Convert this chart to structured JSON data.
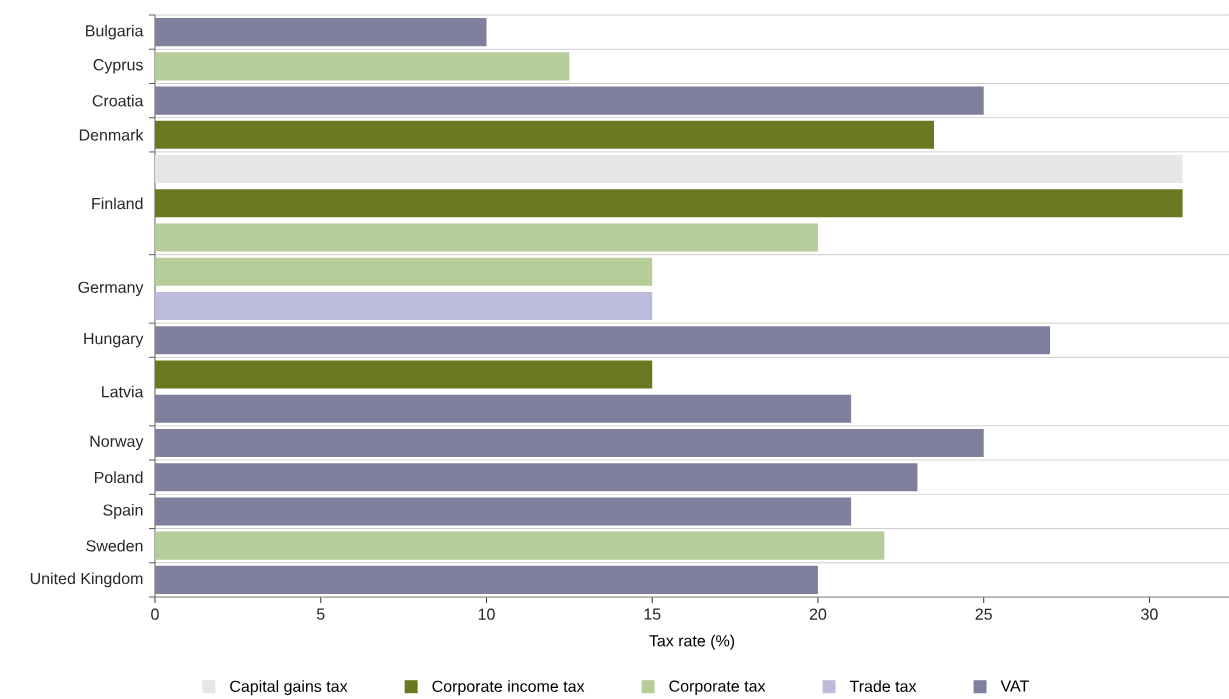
{
  "chart_data": {
    "type": "bar",
    "orientation": "horizontal",
    "xlabel": "Tax rate (%)",
    "categories": [
      "Bulgaria",
      "Cyprus",
      "Croatia",
      "Denmark",
      "Finland",
      "Germany",
      "Hungary",
      "Latvia",
      "Norway",
      "Poland",
      "Spain",
      "Sweden",
      "United Kingdom"
    ],
    "series": [
      {
        "name": "Capital gains tax",
        "color": "#e6e6e8",
        "values": [
          null,
          null,
          null,
          null,
          31,
          null,
          null,
          null,
          null,
          null,
          null,
          null,
          null
        ]
      },
      {
        "name": "Corporate income tax",
        "color": "#6b7820",
        "values": [
          null,
          null,
          null,
          23.5,
          31,
          null,
          null,
          15,
          null,
          null,
          null,
          null,
          null
        ]
      },
      {
        "name": "Corporate tax",
        "color": "#b5cd98",
        "values": [
          null,
          12.5,
          null,
          null,
          20,
          15,
          null,
          null,
          null,
          null,
          null,
          22,
          null
        ]
      },
      {
        "name": "Trade tax",
        "color": "#bcbbdc",
        "values": [
          null,
          null,
          null,
          null,
          null,
          15,
          null,
          null,
          null,
          null,
          null,
          null,
          null
        ]
      },
      {
        "name": "VAT",
        "color": "#7f7f9e",
        "values": [
          10,
          null,
          25,
          null,
          null,
          null,
          27,
          21,
          25,
          23,
          21,
          null,
          20
        ]
      }
    ],
    "xlim": [
      0,
      32.4
    ],
    "xticks": [
      0,
      5,
      10,
      15,
      20,
      25,
      30
    ],
    "legend": "bottom"
  }
}
